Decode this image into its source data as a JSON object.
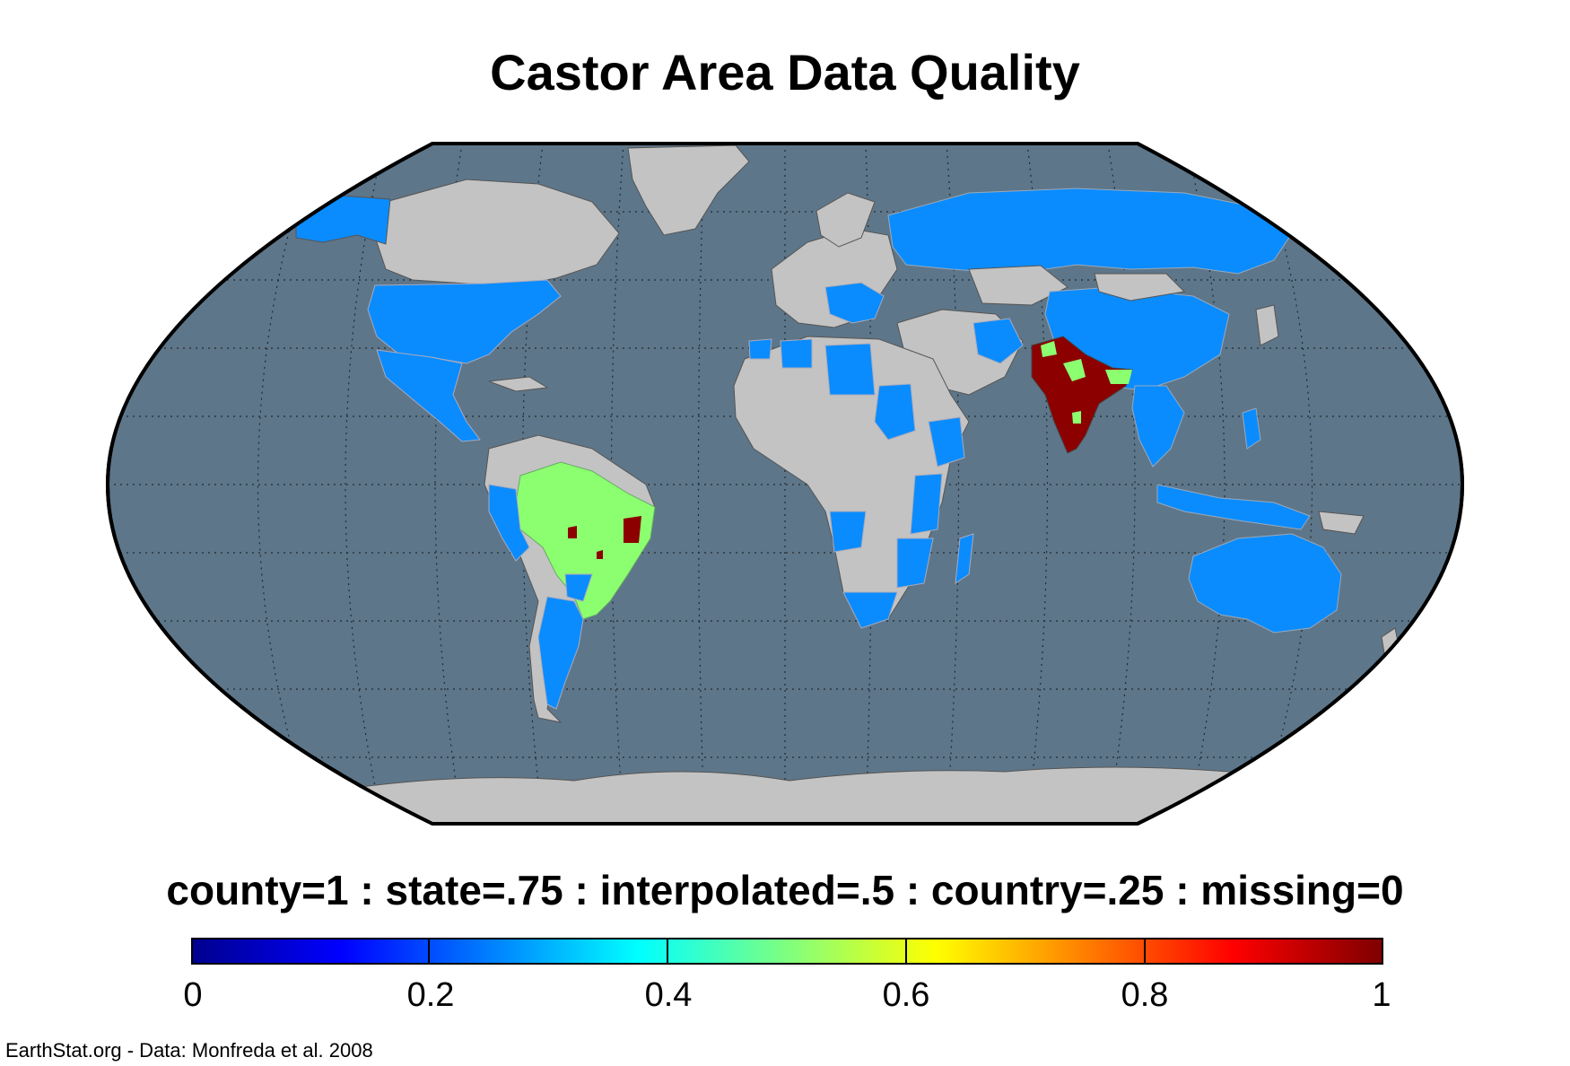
{
  "title": "Castor Area Data Quality",
  "legend": {
    "caption": "county=1 : state=.75 : interpolated=.5 : country=.25 : missing=0",
    "colormap": "jet",
    "ticks": [
      "0",
      "0.2",
      "0.4",
      "0.6",
      "0.8",
      "1"
    ],
    "tick_values": [
      0,
      0.2,
      0.4,
      0.6,
      0.8,
      1
    ]
  },
  "credit": "EarthStat.org - Data: Monfreda et al. 2008",
  "colors": {
    "ocean": "#5e7689",
    "no_data_land": "#c3c3c3",
    "country_level": "#0a8cff",
    "state_level": "#8cff70",
    "county_level": "#8c0000",
    "graticule": "#1e2a33",
    "border": "#555555"
  },
  "map": {
    "projection": "Robinson",
    "regions": [
      {
        "name": "North America (USA, Mexico)",
        "quality": 0.25
      },
      {
        "name": "Brazil",
        "quality": 0.5
      },
      {
        "name": "Brazil hotspots",
        "quality": 1
      },
      {
        "name": "India",
        "quality": 1
      },
      {
        "name": "India periphery",
        "quality": 0.5
      },
      {
        "name": "Russia, China, Australia",
        "quality": 0.25
      },
      {
        "name": "Argentina, Paraguay, Peru",
        "quality": 0.25
      },
      {
        "name": "Africa (selected countries)",
        "quality": 0.25
      }
    ]
  }
}
